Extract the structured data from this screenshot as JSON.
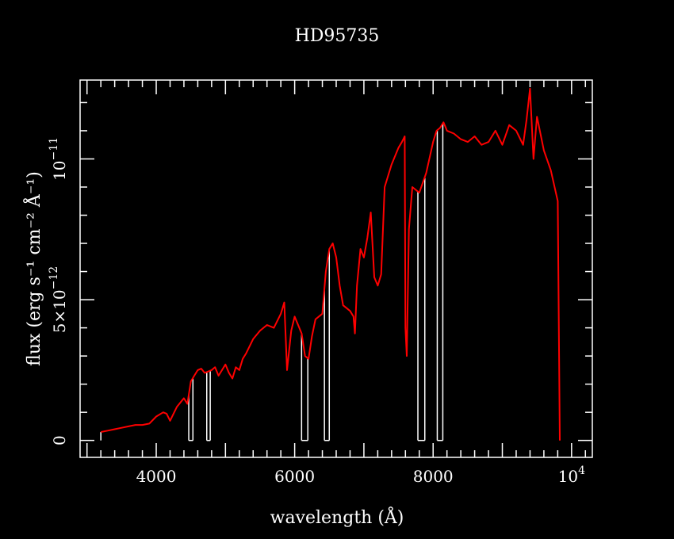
{
  "chart_data": {
    "type": "line",
    "title": "HD95735",
    "xlabel": "wavelength (Å)",
    "ylabel": "flux (erg s⁻¹ cm⁻² Å⁻¹)",
    "xlim": [
      2900,
      10300
    ],
    "ylim": [
      -6e-13,
      1.28e-11
    ],
    "x_ticks": [
      {
        "value": 4000,
        "label": "4000"
      },
      {
        "value": 6000,
        "label": "6000"
      },
      {
        "value": 8000,
        "label": "8000"
      },
      {
        "value": 10000,
        "label": "10",
        "exp": "4"
      }
    ],
    "y_ticks": [
      {
        "value": 0,
        "label": "0"
      },
      {
        "value": 5e-12,
        "label": "5×10",
        "exp": "−12"
      },
      {
        "value": 1e-11,
        "label": "10",
        "exp": "−11"
      }
    ],
    "colors": {
      "background": "#000000",
      "axes": "#ffffff",
      "spectrum": "#ff0000",
      "mask": "#ffffff"
    },
    "series": [
      {
        "x": [
          3200,
          3300,
          3400,
          3500,
          3600,
          3700,
          3800,
          3900,
          4000,
          4100,
          4150,
          4200,
          4300,
          4400,
          4450,
          4500,
          4550,
          4600,
          4650,
          4700,
          4800,
          4850,
          4900,
          4950,
          5000,
          5050,
          5100,
          5150,
          5200,
          5250,
          5300,
          5400,
          5500,
          5600,
          5700,
          5800,
          5850,
          5890,
          5950,
          6000,
          6100,
          6150,
          6200,
          6250,
          6300,
          6400,
          6450,
          6500,
          6550,
          6600,
          6650,
          6700,
          6750,
          6800,
          6850,
          6870,
          6900,
          6950,
          7000,
          7050,
          7100,
          7150,
          7200,
          7250,
          7300,
          7400,
          7500,
          7550,
          7590,
          7600,
          7620,
          7650,
          7700,
          7800,
          7900,
          8000,
          8050,
          8100,
          8150,
          8200,
          8300,
          8400,
          8500,
          8600,
          8700,
          8800,
          8900,
          9000,
          9100,
          9200,
          9300,
          9350,
          9400,
          9450,
          9500,
          9600,
          9700,
          9800,
          9830
        ],
        "y": [
          3e-13,
          3.5e-13,
          4e-13,
          4.5e-13,
          5e-13,
          5.5e-13,
          5.5e-13,
          6e-13,
          8.5e-13,
          1e-12,
          9.5e-13,
          7e-13,
          1.2e-12,
          1.5e-12,
          1.3e-12,
          2.1e-12,
          2.3e-12,
          2.5e-12,
          2.55e-12,
          2.4e-12,
          2.5e-12,
          2.6e-12,
          2.3e-12,
          2.5e-12,
          2.7e-12,
          2.4e-12,
          2.2e-12,
          2.6e-12,
          2.5e-12,
          2.9e-12,
          3.1e-12,
          3.6e-12,
          3.9e-12,
          4.1e-12,
          4e-12,
          4.5e-12,
          4.9e-12,
          2.5e-12,
          3.9e-12,
          4.4e-12,
          3.8e-12,
          3e-12,
          2.9e-12,
          3.7e-12,
          4.3e-12,
          4.5e-12,
          6e-12,
          6.8e-12,
          7e-12,
          6.5e-12,
          5.5e-12,
          4.8e-12,
          4.7e-12,
          4.6e-12,
          4.4e-12,
          3.8e-12,
          5.5e-12,
          6.8e-12,
          6.5e-12,
          7.2e-12,
          8.1e-12,
          5.8e-12,
          5.5e-12,
          5.9e-12,
          9e-12,
          9.8e-12,
          1.04e-11,
          1.06e-11,
          1.08e-11,
          4e-12,
          3e-12,
          7.5e-12,
          9e-12,
          8.8e-12,
          9.5e-12,
          1.06e-11,
          1.1e-11,
          1.11e-11,
          1.13e-11,
          1.1e-11,
          1.09e-11,
          1.07e-11,
          1.06e-11,
          1.08e-11,
          1.05e-11,
          1.06e-11,
          1.1e-11,
          1.05e-11,
          1.12e-11,
          1.1e-11,
          1.05e-11,
          1.14e-11,
          1.25e-11,
          1e-11,
          1.15e-11,
          1.03e-11,
          9.6e-12,
          8.5e-12,
          0.0
        ]
      }
    ],
    "mask_x": [
      3200,
      4470,
      4470,
      4530,
      4530,
      4730,
      4730,
      4780,
      4780,
      6100,
      6100,
      6190,
      6190,
      6430,
      6430,
      6500,
      6500,
      7780,
      7780,
      7880,
      7880,
      8060,
      8060,
      8140,
      8140,
      9830
    ]
  }
}
